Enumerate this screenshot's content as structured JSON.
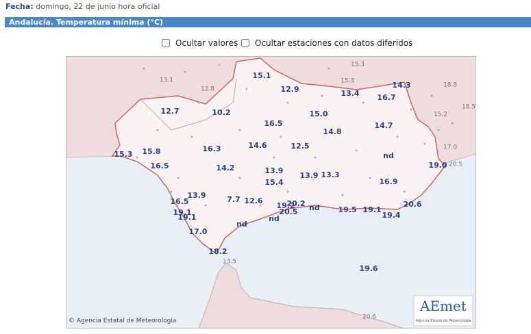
{
  "header": {
    "date_label": "Fecha:",
    "date_value": "domingo, 22 de junio hora oficial",
    "title": "Andalucía. Temperatura mínima (°C)"
  },
  "controls": {
    "hide_values": "Ocultar valores",
    "hide_deferred": "Ocultar estaciones con datos diferidos"
  },
  "map": {
    "stations": [
      "15.1",
      "12.9",
      "13.4",
      "14.3",
      "16.7",
      "12.7",
      "10.2",
      "15.0",
      "16.5",
      "14.7",
      "14.8",
      "15.8",
      "16.3",
      "14.6",
      "12.5",
      "15.3",
      "nd",
      "16.5",
      "14.2",
      "13.9",
      "19.0",
      "15.4",
      "13.9",
      "13.3",
      "16.9",
      "13.9",
      "16.5",
      "7.7",
      "12.6",
      "19.2",
      "20.2",
      "nd",
      "19.5",
      "19.1",
      "20.6",
      "19.1",
      "19.1",
      "20.5",
      "nd",
      "19.4",
      "nd",
      "17.0",
      "18.2",
      "19.6"
    ],
    "other_stations": [
      "15.3",
      "13.1",
      "12.8",
      "15.3",
      "18.8",
      "18.5",
      "15.2",
      "17.0",
      "20.5",
      "13.5",
      "20.6"
    ],
    "copyright": "© Agencia Estatal de Meteorología",
    "logo": "AEmet",
    "logo_caption": "Agencia Estatal de Meteorología"
  }
}
